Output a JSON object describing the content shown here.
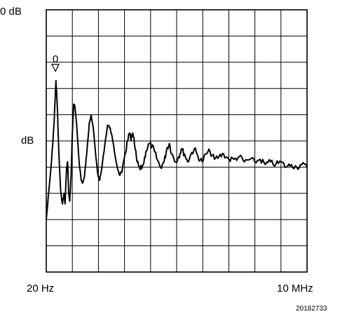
{
  "chart_data": {
    "type": "line",
    "title": "",
    "xlabel": "",
    "ylabel": "",
    "y_top_label": "0 dB",
    "y_mid_label": "dB",
    "x_start_label": "20 Hz",
    "x_end_label": "10 MHz",
    "figure_id": "20182733",
    "marker_label": "0",
    "x_scale": "log",
    "xlim": [
      20,
      10000000
    ],
    "ylim_divisions": [
      0,
      10
    ],
    "grid": true,
    "grid_divisions": {
      "x": 10,
      "y": 10
    },
    "marker": {
      "x_div": 0.35,
      "y_div": 2.4
    },
    "series": [
      {
        "points": [
          [
            0.0,
            8.0
          ],
          [
            0.1,
            6.9
          ],
          [
            0.2,
            5.8
          ],
          [
            0.3,
            4.3
          ],
          [
            0.37,
            2.7
          ],
          [
            0.42,
            3.6
          ],
          [
            0.48,
            5.4
          ],
          [
            0.55,
            6.9
          ],
          [
            0.62,
            7.4
          ],
          [
            0.68,
            7.0
          ],
          [
            0.72,
            7.4
          ],
          [
            0.78,
            6.0
          ],
          [
            0.82,
            5.8
          ],
          [
            0.86,
            7.0
          ],
          [
            0.9,
            7.3
          ],
          [
            0.95,
            6.4
          ],
          [
            1.0,
            4.7
          ],
          [
            1.05,
            3.6
          ],
          [
            1.1,
            3.7
          ],
          [
            1.18,
            4.6
          ],
          [
            1.26,
            5.8
          ],
          [
            1.34,
            6.5
          ],
          [
            1.4,
            6.6
          ],
          [
            1.46,
            6.4
          ],
          [
            1.55,
            5.5
          ],
          [
            1.65,
            4.3
          ],
          [
            1.72,
            4.0
          ],
          [
            1.8,
            4.5
          ],
          [
            1.9,
            5.6
          ],
          [
            1.98,
            6.3
          ],
          [
            2.05,
            6.5
          ],
          [
            2.12,
            6.1
          ],
          [
            2.25,
            5.1
          ],
          [
            2.35,
            4.4
          ],
          [
            2.45,
            4.5
          ],
          [
            2.55,
            5.0
          ],
          [
            2.68,
            5.8
          ],
          [
            2.8,
            6.3
          ],
          [
            2.9,
            6.2
          ],
          [
            3.02,
            5.5
          ],
          [
            3.12,
            5.0
          ],
          [
            3.2,
            4.7
          ],
          [
            3.25,
            5.0
          ],
          [
            3.3,
            4.7
          ],
          [
            3.38,
            5.1
          ],
          [
            3.48,
            5.8
          ],
          [
            3.6,
            6.1
          ],
          [
            3.72,
            5.9
          ],
          [
            3.82,
            5.4
          ],
          [
            3.95,
            5.1
          ],
          [
            4.05,
            5.2
          ],
          [
            4.15,
            5.4
          ],
          [
            4.25,
            5.7
          ],
          [
            4.38,
            6.0
          ],
          [
            4.52,
            5.8
          ],
          [
            4.62,
            5.3
          ],
          [
            4.72,
            5.1
          ],
          [
            4.82,
            5.5
          ],
          [
            4.95,
            5.8
          ],
          [
            5.08,
            5.6
          ],
          [
            5.18,
            5.3
          ],
          [
            5.3,
            5.5
          ],
          [
            5.42,
            5.8
          ],
          [
            5.55,
            5.5
          ],
          [
            5.68,
            5.3
          ],
          [
            5.82,
            5.6
          ],
          [
            5.98,
            5.8
          ],
          [
            6.12,
            5.5
          ],
          [
            6.28,
            5.4
          ],
          [
            6.45,
            5.7
          ],
          [
            6.62,
            5.6
          ],
          [
            6.8,
            5.5
          ],
          [
            7.0,
            5.7
          ],
          [
            7.2,
            5.7
          ],
          [
            7.4,
            5.6
          ],
          [
            7.6,
            5.8
          ],
          [
            7.8,
            5.7
          ],
          [
            8.0,
            5.8
          ],
          [
            8.2,
            5.7
          ],
          [
            8.4,
            5.9
          ],
          [
            8.6,
            5.8
          ],
          [
            8.8,
            5.9
          ],
          [
            9.0,
            5.8
          ],
          [
            9.2,
            6.0
          ],
          [
            9.4,
            5.9
          ],
          [
            9.6,
            6.0
          ],
          [
            9.8,
            5.9
          ],
          [
            10.0,
            6.0
          ]
        ]
      }
    ]
  }
}
